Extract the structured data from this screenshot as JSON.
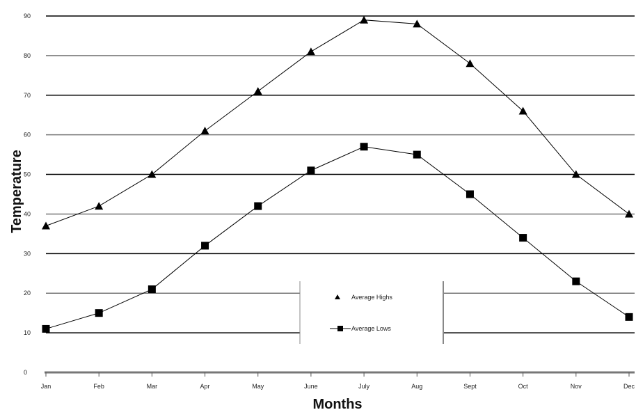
{
  "chart_data": {
    "type": "line",
    "title": "",
    "xlabel": "Months",
    "ylabel": "Temperature",
    "categories": [
      "Jan",
      "Feb",
      "Mar",
      "Apr",
      "May",
      "June",
      "July",
      "Aug",
      "Sept",
      "Oct",
      "Nov",
      "Dec"
    ],
    "ylim": [
      0,
      90
    ],
    "yticks": [
      0,
      10,
      20,
      30,
      40,
      50,
      60,
      70,
      80,
      90
    ],
    "grid": true,
    "legend_position": "bottom-center",
    "series": [
      {
        "name": "Average Highs",
        "marker": "triangle",
        "color": "#000000",
        "values": [
          37,
          42,
          50,
          61,
          71,
          81,
          89,
          88,
          78,
          66,
          50,
          40
        ]
      },
      {
        "name": "Average Lows",
        "marker": "square",
        "color": "#000000",
        "values": [
          11,
          15,
          21,
          32,
          42,
          51,
          57,
          55,
          45,
          34,
          23,
          14
        ]
      }
    ]
  }
}
